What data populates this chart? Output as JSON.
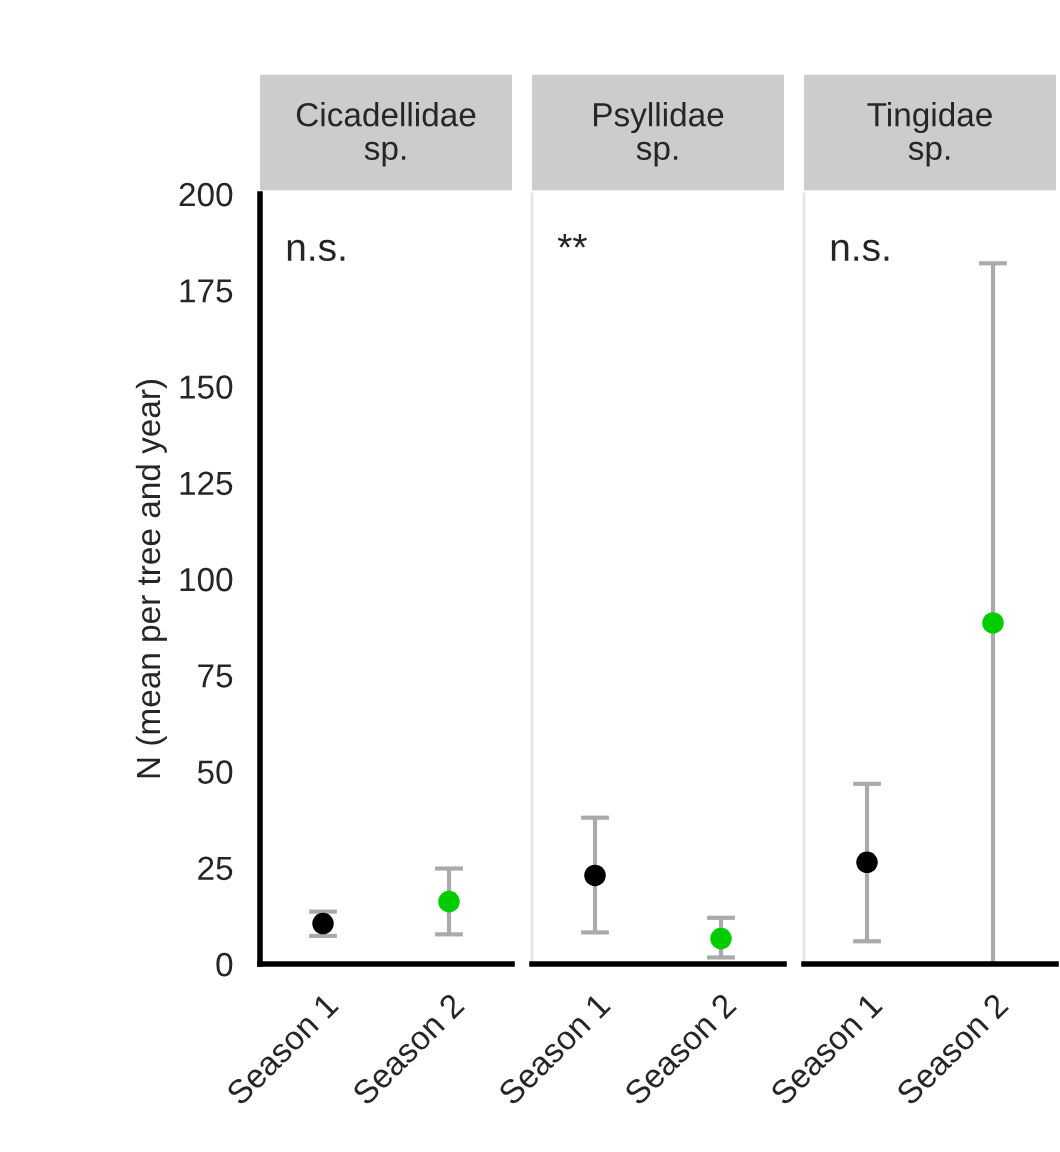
{
  "chart_data": [
    {
      "type": "scatter",
      "title": "Cicadellidae\nsp.",
      "ylabel": "N (mean per tree and year)",
      "categories": [
        "Season 1",
        "Season 2"
      ],
      "ylim": [
        0,
        200
      ],
      "yticks": [
        0,
        25,
        50,
        75,
        100,
        125,
        150,
        175,
        200
      ],
      "marker": "circle",
      "grid": false,
      "annotations": [
        "n.s."
      ],
      "series": [
        {
          "colors": [
            "#000000",
            "#00cc00"
          ],
          "values": [
            10.5,
            16.2
          ],
          "errors": [
            [
              7.3,
              13.6
            ],
            [
              7.7,
              24.8
            ]
          ]
        }
      ]
    },
    {
      "type": "scatter",
      "title": "Psyllidae\nsp.",
      "categories": [
        "Season 1",
        "Season 2"
      ],
      "ylim": [
        0,
        200
      ],
      "tick_labels": "x",
      "marker": "circle",
      "grid": false,
      "annotations": [
        "**"
      ],
      "series": [
        {
          "colors": [
            "#000000",
            "#00cc00"
          ],
          "values": [
            23,
            6.6
          ],
          "errors": [
            [
              8.2,
              38
            ],
            [
              1.7,
              12
            ]
          ]
        }
      ]
    },
    {
      "type": "scatter",
      "title": "Tingidae\nsp.",
      "categories": [
        "Season 1",
        "Season 2"
      ],
      "ylim": [
        0,
        200
      ],
      "tick_labels": "x",
      "marker": "circle",
      "grid": false,
      "annotations": [
        "n.s."
      ],
      "series": [
        {
          "colors": [
            "#000000",
            "#00cc00"
          ],
          "values": [
            26.4,
            88.6
          ],
          "errors": [
            [
              5.9,
              46.8
            ],
            [
              0,
              182
            ]
          ]
        }
      ]
    }
  ]
}
